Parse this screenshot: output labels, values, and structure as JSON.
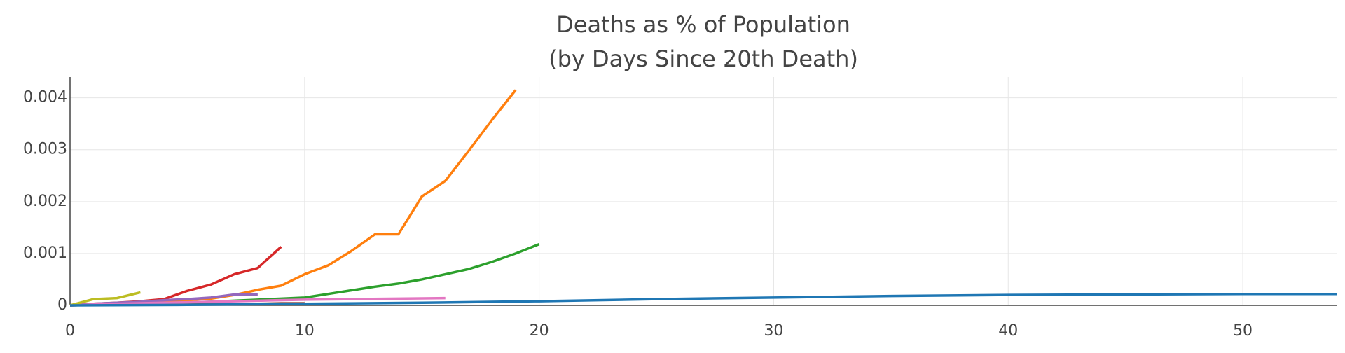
{
  "chart_data": {
    "type": "line",
    "title": "Deaths as % of Population",
    "subtitle": "(by Days Since 20th Death)",
    "xlim": [
      0,
      54
    ],
    "xticks": [
      0,
      10,
      20,
      30,
      40,
      50
    ],
    "ylim": [
      0,
      0.0044
    ],
    "yticks": [
      0,
      0.001,
      0.002,
      0.003,
      0.004
    ],
    "grid": true,
    "series": [
      {
        "color": "#ff7f0e",
        "x": [
          0,
          1,
          2,
          3,
          4,
          5,
          6,
          7,
          8,
          9,
          10,
          11,
          12,
          13,
          14,
          15,
          16,
          17,
          18,
          19
        ],
        "values": [
          0,
          2e-05,
          3e-05,
          5e-05,
          7e-05,
          0.0001,
          0.00013,
          0.0002,
          0.0003,
          0.00038,
          0.0006,
          0.00077,
          0.00105,
          0.00137,
          0.00137,
          0.0021,
          0.0024,
          0.00298,
          0.00358,
          0.00415
        ]
      },
      {
        "color": "#2ca02c",
        "x": [
          0,
          1,
          2,
          3,
          4,
          5,
          6,
          7,
          8,
          9,
          10,
          11,
          12,
          13,
          14,
          15,
          16,
          17,
          18,
          19,
          20
        ],
        "values": [
          0,
          1e-05,
          2e-05,
          3e-05,
          4e-05,
          5e-05,
          7e-05,
          9e-05,
          0.00011,
          0.00013,
          0.00015,
          0.00022,
          0.00029,
          0.00036,
          0.00042,
          0.0005,
          0.0006,
          0.0007,
          0.00084,
          0.001,
          0.00118
        ]
      },
      {
        "color": "#d62728",
        "x": [
          0,
          1,
          2,
          3,
          4,
          5,
          6,
          7,
          8,
          9
        ],
        "values": [
          0,
          3e-05,
          5e-05,
          8e-05,
          0.00012,
          0.00028,
          0.0004,
          0.0006,
          0.00072,
          0.00113
        ]
      },
      {
        "color": "#9467bd",
        "x": [
          0,
          1,
          2,
          3,
          4,
          5,
          6,
          7,
          8
        ],
        "values": [
          0,
          3e-05,
          5e-05,
          7e-05,
          0.0001,
          0.00012,
          0.00015,
          0.00021,
          0.00021
        ]
      },
      {
        "color": "#8c564b",
        "x": [
          0,
          1,
          2,
          3,
          4,
          5,
          6,
          7,
          8,
          9,
          10
        ],
        "values": [
          0,
          1e-05,
          1e-05,
          2e-05,
          2e-05,
          2e-05,
          3e-05,
          3e-05,
          3e-05,
          4e-05,
          4e-05
        ]
      },
      {
        "color": "#e377c2",
        "x": [
          0,
          2,
          4,
          6,
          8,
          10,
          12,
          14,
          16
        ],
        "values": [
          0,
          3e-05,
          5e-05,
          7e-05,
          9e-05,
          0.00011,
          0.00012,
          0.00013,
          0.00014
        ]
      },
      {
        "color": "#bcbd22",
        "x": [
          0,
          1,
          2,
          3
        ],
        "values": [
          0,
          0.00012,
          0.00014,
          0.00025
        ]
      },
      {
        "color": "#1f77b4",
        "x": [
          0,
          5,
          10,
          15,
          20,
          25,
          30,
          35,
          40,
          45,
          50,
          54
        ],
        "values": [
          0,
          1e-05,
          3e-05,
          5e-05,
          8e-05,
          0.00012,
          0.00015,
          0.00018,
          0.0002,
          0.00021,
          0.00022,
          0.00022
        ]
      }
    ]
  }
}
